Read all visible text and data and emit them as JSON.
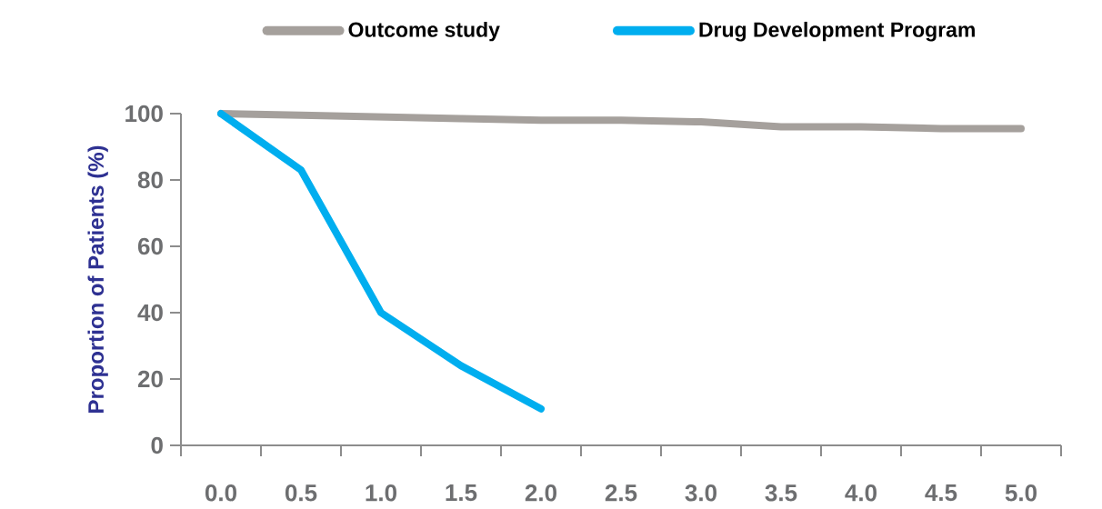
{
  "chart_data": {
    "type": "line",
    "ylabel": "Proportion of Patients (%)",
    "categories": [
      "0.0",
      "0.5",
      "1.0",
      "1.5",
      "2.0",
      "2.5",
      "3.0",
      "3.5",
      "4.0",
      "4.5",
      "5.0"
    ],
    "series": [
      {
        "name": "Outcome study",
        "color": "#a5a09c",
        "values": [
          100,
          99.5,
          99,
          98.5,
          98,
          98,
          97.5,
          96,
          96,
          95.5,
          95.5
        ]
      },
      {
        "name": "Drug Development Program",
        "color": "#00aeef",
        "values": [
          100,
          83,
          40,
          24,
          11,
          null,
          null,
          null,
          null,
          null,
          null
        ]
      }
    ],
    "ylim": [
      0,
      100
    ],
    "yticks": [
      0,
      20,
      40,
      60,
      80,
      100
    ],
    "legend": "top",
    "grid": false,
    "marker": "none",
    "line_style": "solid"
  }
}
